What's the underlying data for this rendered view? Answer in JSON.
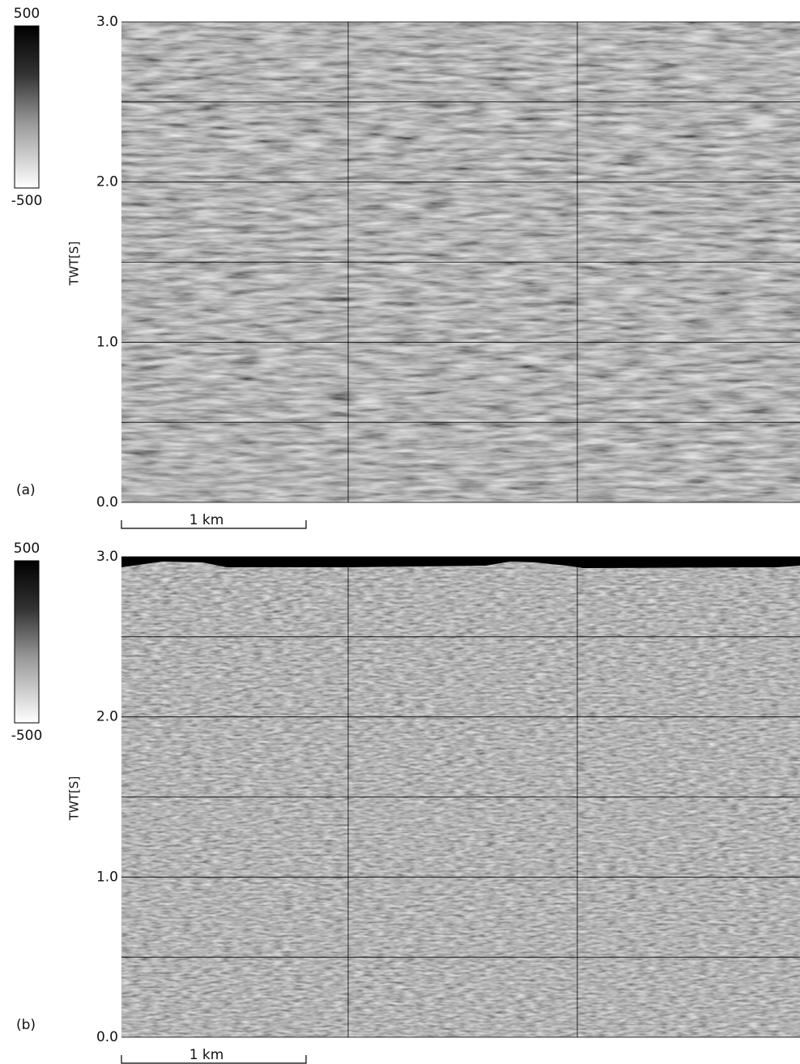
{
  "figure": {
    "panels": [
      {
        "label": "(a)",
        "colorbar": {
          "max": 500,
          "min": -500
        },
        "y_label": "TWT[S]",
        "ylim": [
          0,
          3
        ],
        "yticks": [
          {
            "value": 0,
            "label": "0.0"
          },
          {
            "value": 1,
            "label": "1.0"
          },
          {
            "value": 2,
            "label": "2.0"
          },
          {
            "value": 3,
            "label": "3.0"
          }
        ],
        "scale_bar": "1 km"
      },
      {
        "label": "(b)",
        "colorbar": {
          "max": 500,
          "min": -500
        },
        "y_label": "TWT[S]",
        "ylim": [
          0,
          3
        ],
        "yticks": [
          {
            "value": 0,
            "label": "0.0"
          },
          {
            "value": 1,
            "label": "1.0"
          },
          {
            "value": 2,
            "label": "2.0"
          },
          {
            "value": 3,
            "label": "3.0"
          }
        ],
        "scale_bar": "1 km"
      }
    ]
  }
}
